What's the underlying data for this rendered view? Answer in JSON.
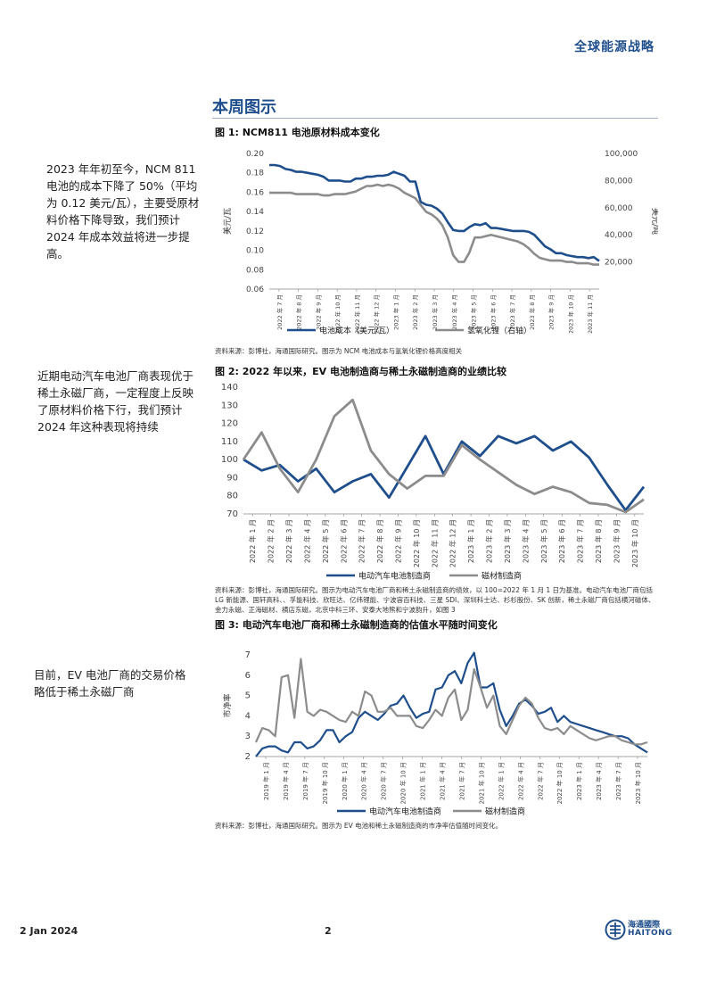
{
  "header": {
    "title": "全球能源战略"
  },
  "section": {
    "title": "本周图示"
  },
  "sidebar_notes": [
    "2023 年年初至今，NCM 811 电池的成本下降了 50%（平均为 0.12 美元/瓦），主要受原材料价格下降导致，我们预计 2024 年成本效益将进一步提高。",
    "近期电动汽车电池厂商表现优于稀土永磁厂商，一定程度上反映了原材料价格下行，我们预计 2024 年这种表现将持续",
    "目前，EV 电池厂商的交易价格略低于稀土永磁厂商"
  ],
  "figures": [
    {
      "title": "图 1:  NCM811 电池原材料成本变化",
      "source": "资料来源：彭博社，海通国际研究。图示为 NCM 电池成本与氢氧化锂价格高度相关"
    },
    {
      "title": "图 2:  2022 年以来，EV 电池制造商与稀土永磁制造商的业绩比较",
      "source": "资料来源：彭博社，海通国际研究。图示为电动汽车电池厂商和稀土永磁制造商的绩效，以 100=2022 年 1 月 1 日为基准。电动汽车电池厂商包括 LG 新能源、国轩高科、、孚能科技、欣旺达、亿纬锂能、宁波容百科技、三星 SDI、深圳科士达、杉杉股份、SK 创新，稀土永磁厂商包括横河磁体、金力永磁、正海磁材、横店东磁，北京中科三环、安泰大地熊和宁波韵升，如图 3"
    },
    {
      "title": "图 3:  电动汽车电池厂商和稀土永磁制造商的估值水平随时间变化",
      "source": "资料来源：彭博社，海通国际研究。图示为 EV 电池和稀土永磁制造商的市净率估值随时间变化。"
    }
  ],
  "chart_data": [
    {
      "type": "line",
      "ylabel": "美元/瓦",
      "y2label": "美元/吨",
      "ylim": [
        0.06,
        0.2
      ],
      "y2lim": [
        0,
        100000
      ],
      "yticks": [
        "0.20",
        "0.18",
        "0.16",
        "0.14",
        "0.12",
        "0.10",
        "0.08",
        "0.06"
      ],
      "y2ticks": [
        "100,000",
        "80,000",
        "60,000",
        "40,000",
        "20,000"
      ],
      "xticks": [
        "2022 年 7 月",
        "2022 年 8 月",
        "2022 年 9 月",
        "2022 年 10 月",
        "2022 年 11 月",
        "2022 年 12 月",
        "2023 年 1 月",
        "2023 年 2 月",
        "2023 年 3 月",
        "2023 年 4 月",
        "2023 年 5 月",
        "2023 年 6 月",
        "2023 年 7 月",
        "2023 年 8 月",
        "2023 年 9 月",
        "2023 年 10 月",
        "2023 年 11 月"
      ],
      "legend_position": "bottom",
      "grid": false,
      "series": [
        {
          "name": "电池成本（美元/瓦）",
          "axis": "left",
          "color": "#1f4e8c",
          "values": [
            0.188,
            0.188,
            0.187,
            0.184,
            0.183,
            0.181,
            0.181,
            0.18,
            0.179,
            0.178,
            0.176,
            0.172,
            0.172,
            0.172,
            0.171,
            0.171,
            0.174,
            0.174,
            0.176,
            0.176,
            0.177,
            0.177,
            0.178,
            0.181,
            0.179,
            0.177,
            0.171,
            0.171,
            0.15,
            0.147,
            0.146,
            0.143,
            0.138,
            0.129,
            0.121,
            0.12,
            0.12,
            0.124,
            0.127,
            0.126,
            0.128,
            0.123,
            0.123,
            0.122,
            0.121,
            0.12,
            0.12,
            0.12,
            0.119,
            0.116,
            0.11,
            0.104,
            0.101,
            0.097,
            0.097,
            0.095,
            0.094,
            0.093,
            0.093,
            0.092,
            0.093,
            0.089
          ]
        },
        {
          "name": "氢氧化锂（右轴）",
          "axis": "right",
          "color": "#8c8c8c",
          "values": [
            71000,
            71000,
            71000,
            71000,
            71000,
            70000,
            70000,
            70000,
            70000,
            70000,
            69000,
            69000,
            70000,
            70000,
            70000,
            71000,
            72000,
            74000,
            76000,
            76000,
            77000,
            76000,
            77000,
            76000,
            74000,
            71000,
            69000,
            67000,
            62000,
            57000,
            55000,
            52000,
            47000,
            38000,
            25000,
            20000,
            20000,
            27000,
            38000,
            38000,
            39000,
            40000,
            39000,
            38000,
            37000,
            36000,
            35000,
            33000,
            30000,
            26000,
            23000,
            22000,
            21000,
            21000,
            21000,
            20000,
            20000,
            19000,
            19000,
            19000,
            18000,
            18000
          ]
        }
      ]
    },
    {
      "type": "line",
      "ylim": [
        70,
        140
      ],
      "yticks": [
        "140",
        "130",
        "120",
        "110",
        "100",
        "90",
        "80",
        "70"
      ],
      "xticks": [
        "2022 年 1 月",
        "2022 年 2 月",
        "2022 年 3 月",
        "2022 年 4 月",
        "2022 年 5 月",
        "2022 年 6 月",
        "2022 年 7 月",
        "2022 年 8 月",
        "2022 年 9 月",
        "2022 年 10 月",
        "2022 年 11 月",
        "2022 年 12 月",
        "2023 年 1 月",
        "2023 年 2 月",
        "2023 年 3 月",
        "2023 年 4 月",
        "2023 年 5 月",
        "2023 年 6 月",
        "2023 年 7 月",
        "2023 年 8 月",
        "2023 年 9 月",
        "2023 年 10 月"
      ],
      "legend_position": "bottom",
      "grid": false,
      "series": [
        {
          "name": "电动汽车电池制造商",
          "color": "#1f4e8c",
          "values": [
            100,
            94,
            97,
            88,
            95,
            82,
            88,
            92,
            79,
            96,
            113,
            92,
            110,
            102,
            113,
            109,
            113,
            105,
            110,
            101,
            86,
            72,
            85
          ]
        },
        {
          "name": "磁材制造商",
          "color": "#8c8c8c",
          "values": [
            100,
            115,
            95,
            82,
            100,
            124,
            133,
            105,
            92,
            84,
            91,
            91,
            108,
            100,
            93,
            86,
            81,
            85,
            82,
            76,
            75,
            71,
            78
          ]
        }
      ]
    },
    {
      "type": "line",
      "ylabel": "市净率",
      "ylim": [
        2,
        7
      ],
      "yticks": [
        "7",
        "6",
        "5",
        "4",
        "3",
        "2"
      ],
      "xticks": [
        "2019 年 1 月",
        "2019 年 4 月",
        "2019 年 7 月",
        "2019 年 10 月",
        "2020 年 1 月",
        "2020 年 4 月",
        "2020 年 7 月",
        "2020 年 10 月",
        "2021 年 1 月",
        "2021 年 4 月",
        "2021 年 7 月",
        "2021 年 10 月",
        "2022 年 1 月",
        "2022 年 4 月",
        "2022 年 7 月",
        "2022 年 10 月",
        "2023 年 1 月",
        "2023 年 4 月",
        "2023 年 7 月",
        "2023 年 10 月"
      ],
      "legend_position": "bottom",
      "grid": false,
      "series": [
        {
          "name": "电动汽车电池制造商",
          "color": "#1f4e8c",
          "values": [
            2.0,
            2.4,
            2.5,
            2.5,
            2.3,
            2.2,
            2.7,
            2.7,
            2.4,
            2.5,
            2.8,
            3.3,
            3.3,
            2.7,
            3.0,
            3.2,
            3.9,
            4.2,
            4.0,
            3.8,
            4.1,
            4.5,
            4.6,
            5.0,
            4.4,
            3.9,
            4.1,
            4.2,
            5.3,
            5.4,
            6.0,
            6.2,
            5.6,
            6.6,
            7.1,
            5.4,
            5.4,
            5.6,
            4.3,
            3.5,
            4.0,
            4.6,
            4.8,
            4.5,
            4.1,
            4.2,
            4.4,
            3.7,
            4.0,
            3.7,
            3.6,
            3.5,
            3.4,
            3.3,
            3.2,
            3.1,
            3.0,
            3.0,
            2.9,
            2.6,
            2.4,
            2.2
          ]
        },
        {
          "name": "磁材制造商",
          "color": "#8c8c8c",
          "values": [
            2.7,
            3.4,
            3.3,
            3.0,
            5.9,
            6.0,
            3.9,
            6.8,
            4.2,
            4.0,
            4.3,
            4.2,
            4.0,
            3.8,
            3.7,
            4.2,
            4.0,
            5.2,
            5.0,
            4.2,
            4.2,
            4.4,
            4.0,
            4.0,
            4.0,
            3.5,
            3.4,
            3.8,
            4.3,
            4.0,
            4.9,
            5.3,
            3.8,
            4.3,
            6.3,
            5.4,
            4.4,
            5.0,
            3.5,
            3.1,
            3.8,
            4.5,
            4.9,
            4.6,
            3.9,
            3.4,
            3.3,
            3.4,
            3.1,
            3.5,
            3.3,
            3.1,
            2.9,
            2.8,
            2.9,
            3.0,
            3.0,
            2.8,
            2.7,
            2.6,
            2.6,
            2.7
          ]
        }
      ]
    }
  ],
  "footer": {
    "date": "2 Jan 2024",
    "page": "2",
    "logo_cn": "海通國際",
    "logo_en": "HAITONG"
  }
}
